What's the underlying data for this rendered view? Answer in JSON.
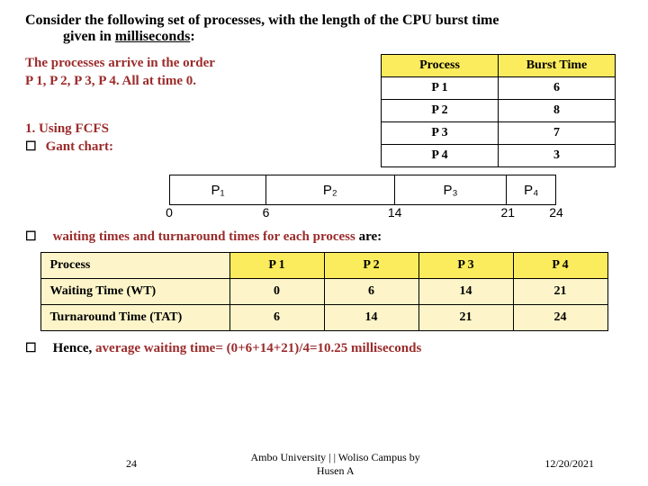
{
  "title": {
    "line1_prefix": "Consider the following set of processes, with the length of the CPU burst time",
    "line2_indent": "given in ",
    "line2_underlined": "milliseconds",
    "line2_suffix": ":"
  },
  "arrive": {
    "l1": "The processes arrive in the order",
    "l2": "P 1, P 2, P 3, P 4. All at time 0."
  },
  "proc_table": {
    "headers": [
      "Process",
      "Burst Time"
    ],
    "rows": [
      [
        "P 1",
        "6"
      ],
      [
        "P 2",
        "8"
      ],
      [
        "P 3",
        "7"
      ],
      [
        "P 4",
        "3"
      ]
    ],
    "header_bg": "#fbec5d"
  },
  "step1": "1. Using FCFS",
  "bullet_label": "Gant chart:",
  "gantt": {
    "segments": [
      {
        "label": "P₁",
        "width_pct": 25
      },
      {
        "label": "P₂",
        "width_pct": 33.3
      },
      {
        "label": "P₃",
        "width_pct": 29.2
      },
      {
        "label": "P₄",
        "width_pct": 12.5
      }
    ],
    "ticks": [
      {
        "label": "0",
        "pos_pct": 0
      },
      {
        "label": "6",
        "pos_pct": 25
      },
      {
        "label": "14",
        "pos_pct": 58.3
      },
      {
        "label": "21",
        "pos_pct": 87.5
      },
      {
        "label": "24",
        "pos_pct": 100
      }
    ]
  },
  "waiting_text_a": "waiting times and turnaround times for each process ",
  "waiting_text_b": "are:",
  "times_table": {
    "headers": [
      "Process",
      "P 1",
      "P 2",
      "P 3",
      "P 4"
    ],
    "rows": [
      [
        "Waiting Time (WT)",
        "0",
        "6",
        "14",
        "21"
      ],
      [
        "Turnaround Time (TAT)",
        "6",
        "14",
        "21",
        "24"
      ]
    ]
  },
  "final": {
    "a": "Hence, ",
    "b": "average waiting time",
    "c": "= (0+6+14+21)/4=10.25 milliseconds"
  },
  "footer": {
    "slide": "24",
    "mid_l1": "Ambo University | | Woliso Campus     by",
    "mid_l2": "Husen A",
    "date": "12/20/2021"
  },
  "colors": {
    "maroon": "#9b2b2b",
    "header_bg": "#fbec5d",
    "cell_bg": "#fdf5c9"
  }
}
